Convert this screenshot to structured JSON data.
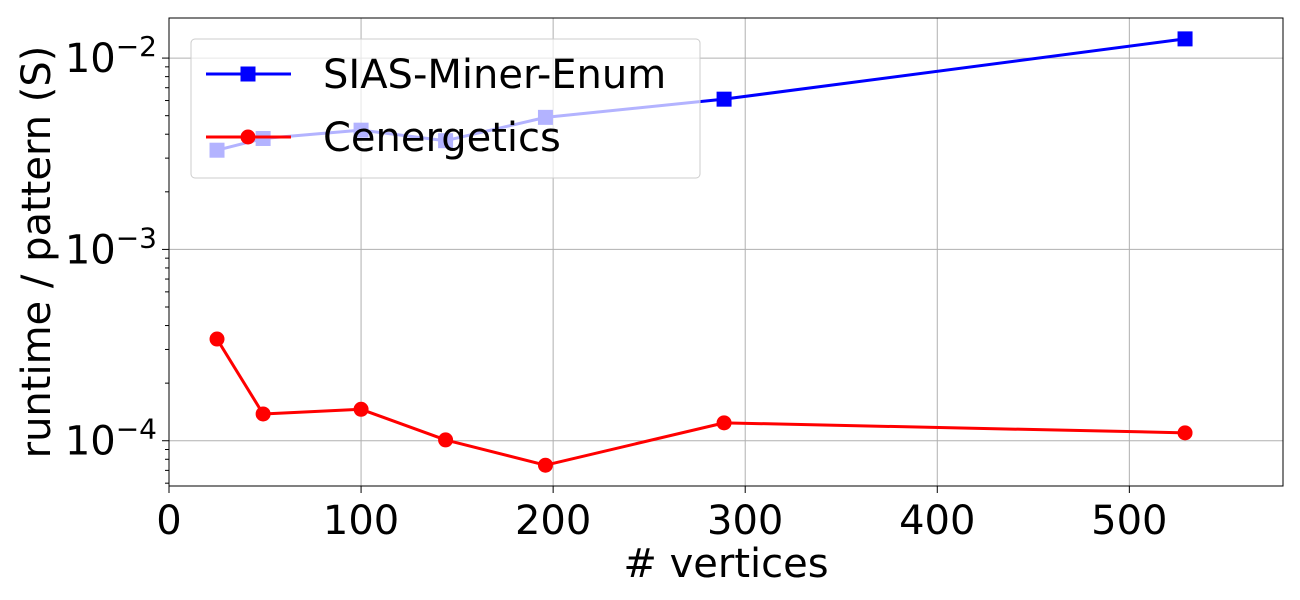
{
  "chart_data": {
    "type": "line",
    "xlabel": "# vertices",
    "ylabel": "runtime / pattern (S)",
    "xlim": [
      0,
      580
    ],
    "ylim": [
      5.8e-05,
      0.0162
    ],
    "yscale": "log",
    "grid": true,
    "legend_position": "top-left",
    "x_ticks": [
      0,
      100,
      200,
      300,
      400,
      500
    ],
    "x_tick_labels": [
      "0",
      "100",
      "200",
      "300",
      "400",
      "500"
    ],
    "y_ticks": [
      0.0001,
      0.001,
      0.01
    ],
    "y_tick_labels": [
      {
        "base": "10",
        "exp": "−4"
      },
      {
        "base": "10",
        "exp": "−3"
      },
      {
        "base": "10",
        "exp": "−2"
      }
    ],
    "series": [
      {
        "name": "SIAS-Miner-Enum",
        "color": "#0000ff",
        "marker": "square",
        "x": [
          25,
          49,
          100,
          144,
          196,
          289,
          529
        ],
        "y": [
          0.0033,
          0.0038,
          0.0042,
          0.0037,
          0.0049,
          0.0061,
          0.0126
        ]
      },
      {
        "name": "Cenergetics",
        "color": "#ff0000",
        "marker": "circle",
        "x": [
          25,
          49,
          100,
          144,
          196,
          289,
          529
        ],
        "y": [
          0.00034,
          0.000138,
          0.000146,
          0.000101,
          7.45e-05,
          0.000124,
          0.00011
        ]
      }
    ]
  }
}
